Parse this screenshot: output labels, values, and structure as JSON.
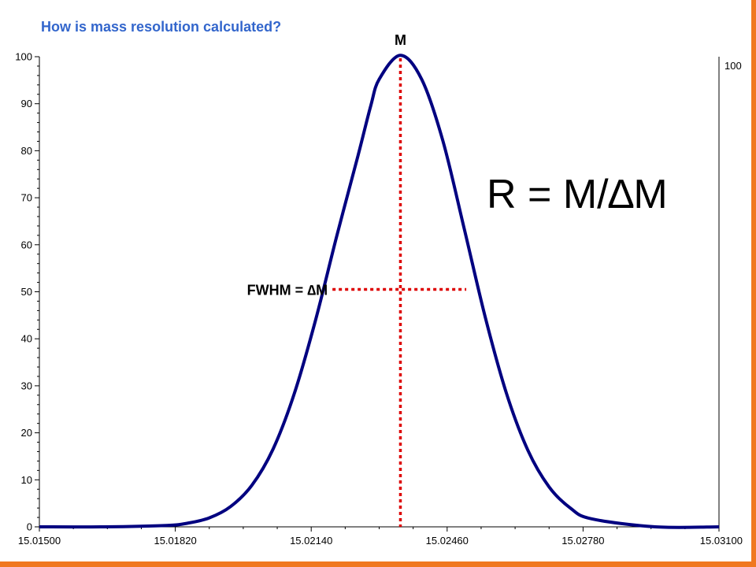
{
  "slide": {
    "title": "How is mass resolution calculated?",
    "title_color": "#3366cc",
    "accent_color": "#f07820"
  },
  "chart_data": {
    "type": "line",
    "title": "",
    "xlabel": "",
    "ylabel": "",
    "x_ticks": [
      "15.01500",
      "15.01820",
      "15.02140",
      "15.02460",
      "15.02780",
      "15.03100"
    ],
    "y_ticks": [
      "0",
      "10",
      "20",
      "30",
      "40",
      "50",
      "60",
      "70",
      "80",
      "90",
      "100"
    ],
    "right_axis_label": "100",
    "xlim": [
      15.015,
      15.031
    ],
    "ylim": [
      0,
      100
    ],
    "grid": false,
    "series": [
      {
        "color": "#000080",
        "x": [
          15.015,
          15.0165,
          15.018,
          15.0185,
          15.019,
          15.0195,
          15.02,
          15.0205,
          15.021,
          15.0215,
          15.022,
          15.0225,
          15.0228,
          15.023,
          15.0235,
          15.024,
          15.0245,
          15.025,
          15.0255,
          15.026,
          15.0265,
          15.027,
          15.0275,
          15.028,
          15.0295,
          15.031
        ],
        "y": [
          0,
          0,
          0.3,
          0.8,
          1.9,
          4.3,
          8.8,
          16.5,
          28.3,
          43.9,
          61.8,
          78.9,
          89.5,
          95.2,
          100.3,
          95.2,
          82.1,
          63.5,
          44.5,
          28.3,
          16.3,
          8.5,
          4.0,
          1.7,
          0,
          0
        ]
      }
    ],
    "annotations": {
      "peak_label": "M",
      "peak_x": 15.0235,
      "fwhm_label": "FWHM = ",
      "fwhm_symbol": "∆M",
      "fwhm_y": 50.5,
      "fwhm_x_start": 15.0219,
      "fwhm_x_end": 15.02505,
      "formula": "R = M/",
      "formula_symbol": "∆M",
      "annotation_color": "#dd0000"
    }
  }
}
